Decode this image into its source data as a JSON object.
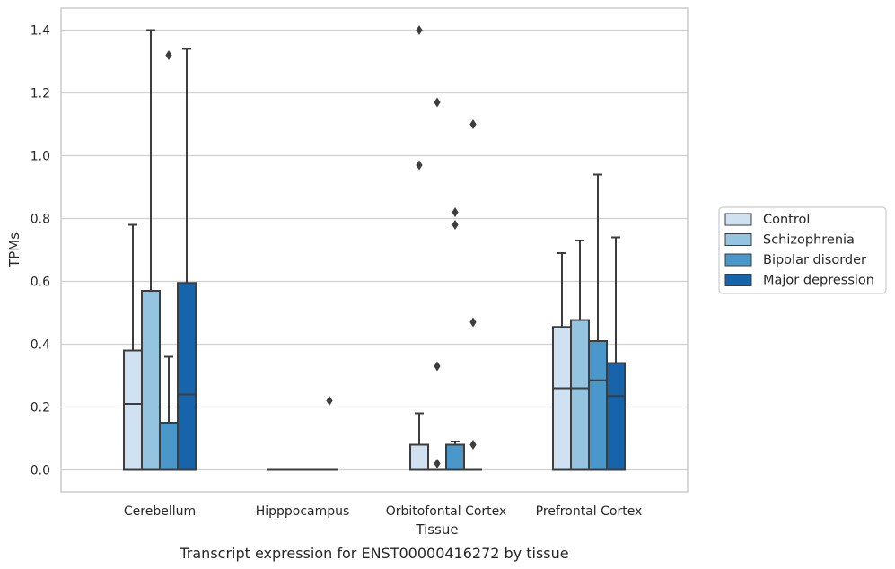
{
  "chart_data": {
    "type": "box",
    "xlabel": "Tissue",
    "ylabel": "TPMs",
    "caption": "Transcript expression for ENST00000416272 by tissue",
    "ylim": [
      -0.07,
      1.47
    ],
    "yticks": [
      0.0,
      0.2,
      0.4,
      0.6,
      0.8,
      1.0,
      1.2,
      1.4
    ],
    "ytick_labels": [
      "0.0",
      "0.2",
      "0.4",
      "0.6",
      "0.8",
      "1.0",
      "1.2",
      "1.4"
    ],
    "grid": "horizontal",
    "legend_position": "right",
    "categories": [
      "Cerebellum",
      "Hipppocampus",
      "Orbitofontal Cortex",
      "Prefrontal Cortex"
    ],
    "series": [
      {
        "name": "Control",
        "color": "#d0e1f2",
        "boxes": [
          {
            "q1": 0.0,
            "median": 0.21,
            "q3": 0.38,
            "whisker_low": 0.0,
            "whisker_high": 0.78,
            "outliers": []
          },
          {
            "q1": 0.0,
            "median": 0.0,
            "q3": 0.0,
            "whisker_low": 0.0,
            "whisker_high": 0.0,
            "outliers": []
          },
          {
            "q1": 0.0,
            "median": 0.0,
            "q3": 0.08,
            "whisker_low": 0.0,
            "whisker_high": 0.18,
            "outliers": [
              0.97,
              1.4
            ]
          },
          {
            "q1": 0.0,
            "median": 0.26,
            "q3": 0.455,
            "whisker_low": 0.0,
            "whisker_high": 0.69,
            "outliers": []
          }
        ]
      },
      {
        "name": "Schizophrenia",
        "color": "#94c4df",
        "boxes": [
          {
            "q1": 0.0,
            "median": 0.0,
            "q3": 0.57,
            "whisker_low": 0.0,
            "whisker_high": 1.4,
            "outliers": []
          },
          {
            "q1": 0.0,
            "median": 0.0,
            "q3": 0.0,
            "whisker_low": 0.0,
            "whisker_high": 0.0,
            "outliers": []
          },
          {
            "q1": 0.0,
            "median": 0.0,
            "q3": 0.0,
            "whisker_low": 0.0,
            "whisker_high": 0.0,
            "outliers": [
              0.02,
              0.33,
              1.17
            ]
          },
          {
            "q1": 0.0,
            "median": 0.26,
            "q3": 0.477,
            "whisker_low": 0.0,
            "whisker_high": 0.73,
            "outliers": []
          }
        ]
      },
      {
        "name": "Bipolar disorder",
        "color": "#4a98c9",
        "boxes": [
          {
            "q1": 0.0,
            "median": 0.0,
            "q3": 0.15,
            "whisker_low": 0.0,
            "whisker_high": 0.36,
            "outliers": [
              1.32
            ]
          },
          {
            "q1": 0.0,
            "median": 0.0,
            "q3": 0.0,
            "whisker_low": 0.0,
            "whisker_high": 0.0,
            "outliers": []
          },
          {
            "q1": 0.0,
            "median": 0.0,
            "q3": 0.08,
            "whisker_low": 0.0,
            "whisker_high": 0.09,
            "outliers": [
              0.78,
              0.82
            ]
          },
          {
            "q1": 0.0,
            "median": 0.285,
            "q3": 0.41,
            "whisker_low": 0.0,
            "whisker_high": 0.94,
            "outliers": []
          }
        ]
      },
      {
        "name": "Major depression",
        "color": "#1764ab",
        "boxes": [
          {
            "q1": 0.0,
            "median": 0.24,
            "q3": 0.595,
            "whisker_low": 0.0,
            "whisker_high": 1.34,
            "outliers": []
          },
          {
            "q1": 0.0,
            "median": 0.0,
            "q3": 0.0,
            "whisker_low": 0.0,
            "whisker_high": 0.0,
            "outliers": [
              0.22
            ]
          },
          {
            "q1": 0.0,
            "median": 0.0,
            "q3": 0.0,
            "whisker_low": 0.0,
            "whisker_high": 0.0,
            "outliers": [
              0.08,
              0.47,
              1.1
            ]
          },
          {
            "q1": 0.0,
            "median": 0.235,
            "q3": 0.34,
            "whisker_low": 0.0,
            "whisker_high": 0.74,
            "outliers": []
          }
        ]
      }
    ]
  }
}
